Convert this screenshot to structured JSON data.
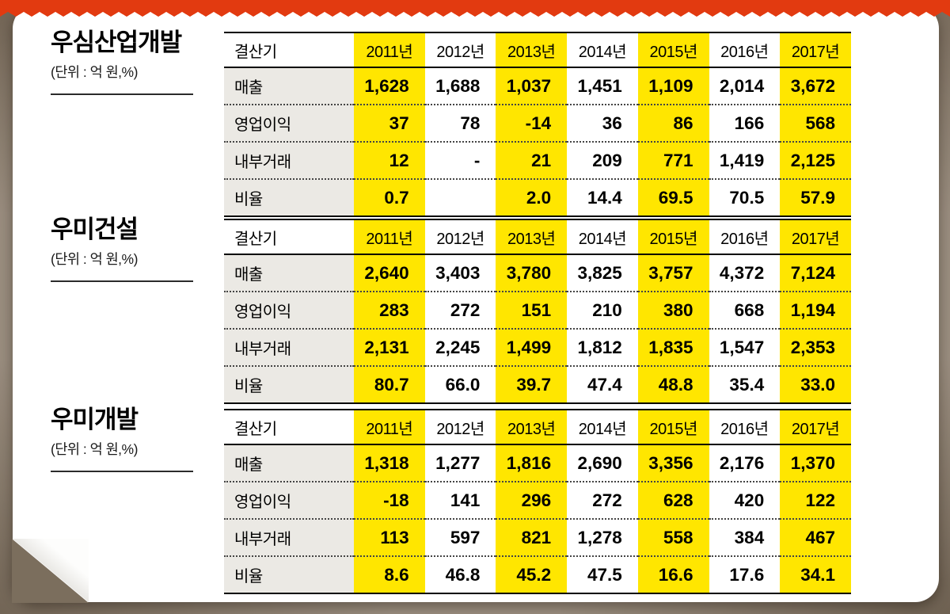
{
  "style": {
    "highlight_color": "#ffe600",
    "label_bg": "#ebe9e4",
    "tear_color": "#e23a10",
    "card_color": "#ffffff"
  },
  "chart_data": [
    {
      "type": "table",
      "title": "우심산업개발",
      "unit": "(단위 : 억 원,%)",
      "columns": [
        "결산기",
        "2011년",
        "2012년",
        "2013년",
        "2014년",
        "2015년",
        "2016년",
        "2017년"
      ],
      "highlighted_columns": [
        "2011년",
        "2013년",
        "2015년",
        "2017년"
      ],
      "rows": [
        {
          "label": "매출",
          "values": [
            "1,628",
            "1,688",
            "1,037",
            "1,451",
            "1,109",
            "2,014",
            "3,672"
          ]
        },
        {
          "label": "영업이익",
          "values": [
            "37",
            "78",
            "-14",
            "36",
            "86",
            "166",
            "568"
          ]
        },
        {
          "label": "내부거래",
          "values": [
            "12",
            "-",
            "21",
            "209",
            "771",
            "1,419",
            "2,125"
          ]
        },
        {
          "label": "비율",
          "values": [
            "0.7",
            "",
            "2.0",
            "14.4",
            "69.5",
            "70.5",
            "57.9"
          ]
        }
      ]
    },
    {
      "type": "table",
      "title": "우미건설",
      "unit": "(단위 : 억 원,%)",
      "columns": [
        "결산기",
        "2011년",
        "2012년",
        "2013년",
        "2014년",
        "2015년",
        "2016년",
        "2017년"
      ],
      "highlighted_columns": [
        "2011년",
        "2013년",
        "2015년",
        "2017년"
      ],
      "rows": [
        {
          "label": "매출",
          "values": [
            "2,640",
            "3,403",
            "3,780",
            "3,825",
            "3,757",
            "4,372",
            "7,124"
          ]
        },
        {
          "label": "영업이익",
          "values": [
            "283",
            "272",
            "151",
            "210",
            "380",
            "668",
            "1,194"
          ]
        },
        {
          "label": "내부거래",
          "values": [
            "2,131",
            "2,245",
            "1,499",
            "1,812",
            "1,835",
            "1,547",
            "2,353"
          ]
        },
        {
          "label": "비율",
          "values": [
            "80.7",
            "66.0",
            "39.7",
            "47.4",
            "48.8",
            "35.4",
            "33.0"
          ]
        }
      ]
    },
    {
      "type": "table",
      "title": "우미개발",
      "unit": "(단위 : 억 원,%)",
      "columns": [
        "결산기",
        "2011년",
        "2012년",
        "2013년",
        "2014년",
        "2015년",
        "2016년",
        "2017년"
      ],
      "highlighted_columns": [
        "2011년",
        "2013년",
        "2015년",
        "2017년"
      ],
      "rows": [
        {
          "label": "매출",
          "values": [
            "1,318",
            "1,277",
            "1,816",
            "2,690",
            "3,356",
            "2,176",
            "1,370"
          ]
        },
        {
          "label": "영업이익",
          "values": [
            "-18",
            "141",
            "296",
            "272",
            "628",
            "420",
            "122"
          ]
        },
        {
          "label": "내부거래",
          "values": [
            "113",
            "597",
            "821",
            "1,278",
            "558",
            "384",
            "467"
          ]
        },
        {
          "label": "비율",
          "values": [
            "8.6",
            "46.8",
            "45.2",
            "47.5",
            "16.6",
            "17.6",
            "34.1"
          ]
        }
      ]
    }
  ]
}
